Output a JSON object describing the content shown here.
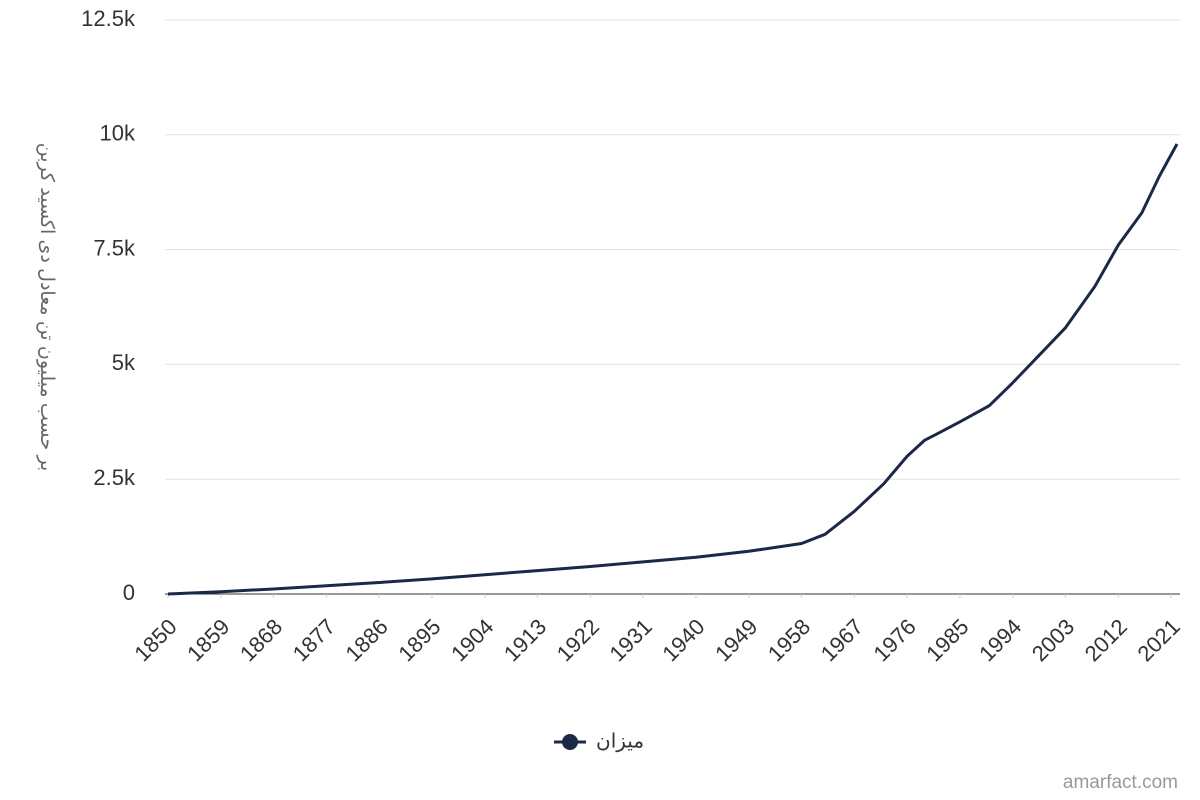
{
  "chart_data": {
    "type": "line",
    "y_label": "بر حسب میلیون تن معادل دی اکسید کربن",
    "watermark": "amarfact.com",
    "x": [
      1850,
      1859,
      1868,
      1877,
      1886,
      1895,
      1904,
      1913,
      1922,
      1931,
      1940,
      1949,
      1958,
      1962,
      1967,
      1972,
      1976,
      1979,
      1981,
      1985,
      1990,
      1994,
      2000,
      2003,
      2008,
      2012,
      2016,
      2019,
      2022
    ],
    "series": [
      {
        "name": "میزان",
        "color": "#1b2847",
        "values": [
          0,
          50,
          110,
          180,
          250,
          330,
          420,
          510,
          600,
          700,
          800,
          930,
          1100,
          1300,
          1800,
          2400,
          3000,
          3350,
          3480,
          3750,
          4100,
          4600,
          5400,
          5800,
          6700,
          7600,
          8300,
          9100,
          9800
        ]
      }
    ],
    "xlim": [
      1850,
      2022
    ],
    "xticks": [
      1850,
      1859,
      1868,
      1877,
      1886,
      1895,
      1904,
      1913,
      1922,
      1931,
      1940,
      1949,
      1958,
      1967,
      1976,
      1985,
      1994,
      2003,
      2012,
      2021
    ],
    "ylim": [
      0,
      12500
    ],
    "yticks": [
      0,
      {
        "value": 2500,
        "label": "2.5k"
      },
      {
        "value": 5000,
        "label": "5k"
      },
      {
        "value": 7500,
        "label": "7.5k"
      },
      {
        "value": 10000,
        "label": "10k"
      },
      {
        "value": 12500,
        "label": "12.5k"
      }
    ],
    "grid": true
  }
}
